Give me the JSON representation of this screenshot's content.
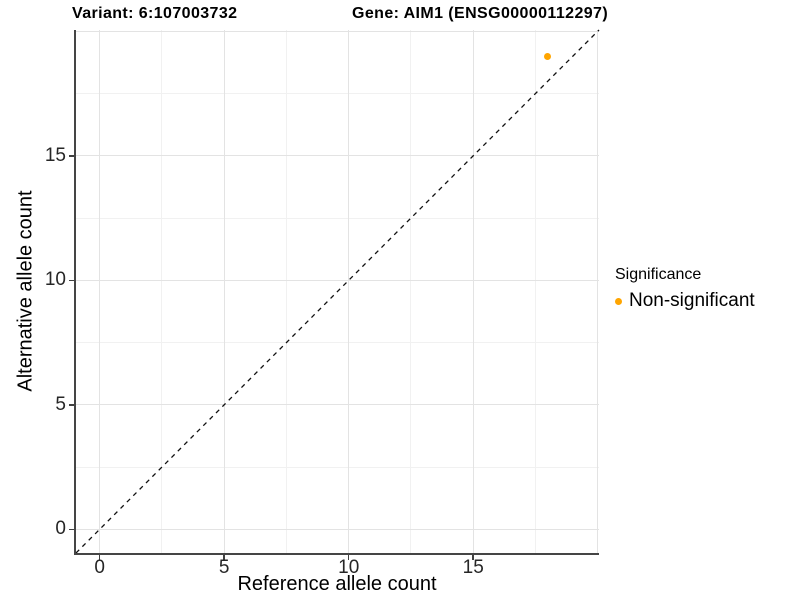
{
  "figure": {
    "title_variant": "Variant: 6:107003732",
    "title_gene": "Gene: AIM1 (ENSG00000112297)"
  },
  "chart_data": {
    "type": "scatter",
    "title": "Variant: 6:107003732   Gene: AIM1 (ENSG00000112297)",
    "xlabel": "Reference allele count",
    "ylabel": "Alternative allele count",
    "xlim": [
      -0.95,
      20.05
    ],
    "ylim": [
      -0.95,
      20.05
    ],
    "x_ticks": [
      0,
      5,
      10,
      15
    ],
    "y_ticks": [
      0,
      5,
      10,
      15
    ],
    "major_gridlines": [
      0,
      5,
      10,
      15,
      20
    ],
    "minor_gridlines": [
      2.5,
      7.5,
      12.5,
      17.5
    ],
    "grid": true,
    "series": [
      {
        "name": "Non-significant",
        "color": "#FFA500",
        "points": [
          {
            "x": 18,
            "y": 19
          }
        ]
      }
    ],
    "reference_line": {
      "type": "identity",
      "equation": "y = x",
      "style": "dashed",
      "color": "#111111"
    },
    "legend": {
      "title": "Significance",
      "position": "right",
      "entries": [
        {
          "label": "Non-significant",
          "color": "#FFA500",
          "marker": "circle"
        }
      ]
    },
    "colors": {
      "point_orange": "#FFA500",
      "axis_line": "#454545",
      "grid_major": "#e3e3e3",
      "grid_minor": "#f1f1f1",
      "tick_text": "#262626"
    }
  }
}
